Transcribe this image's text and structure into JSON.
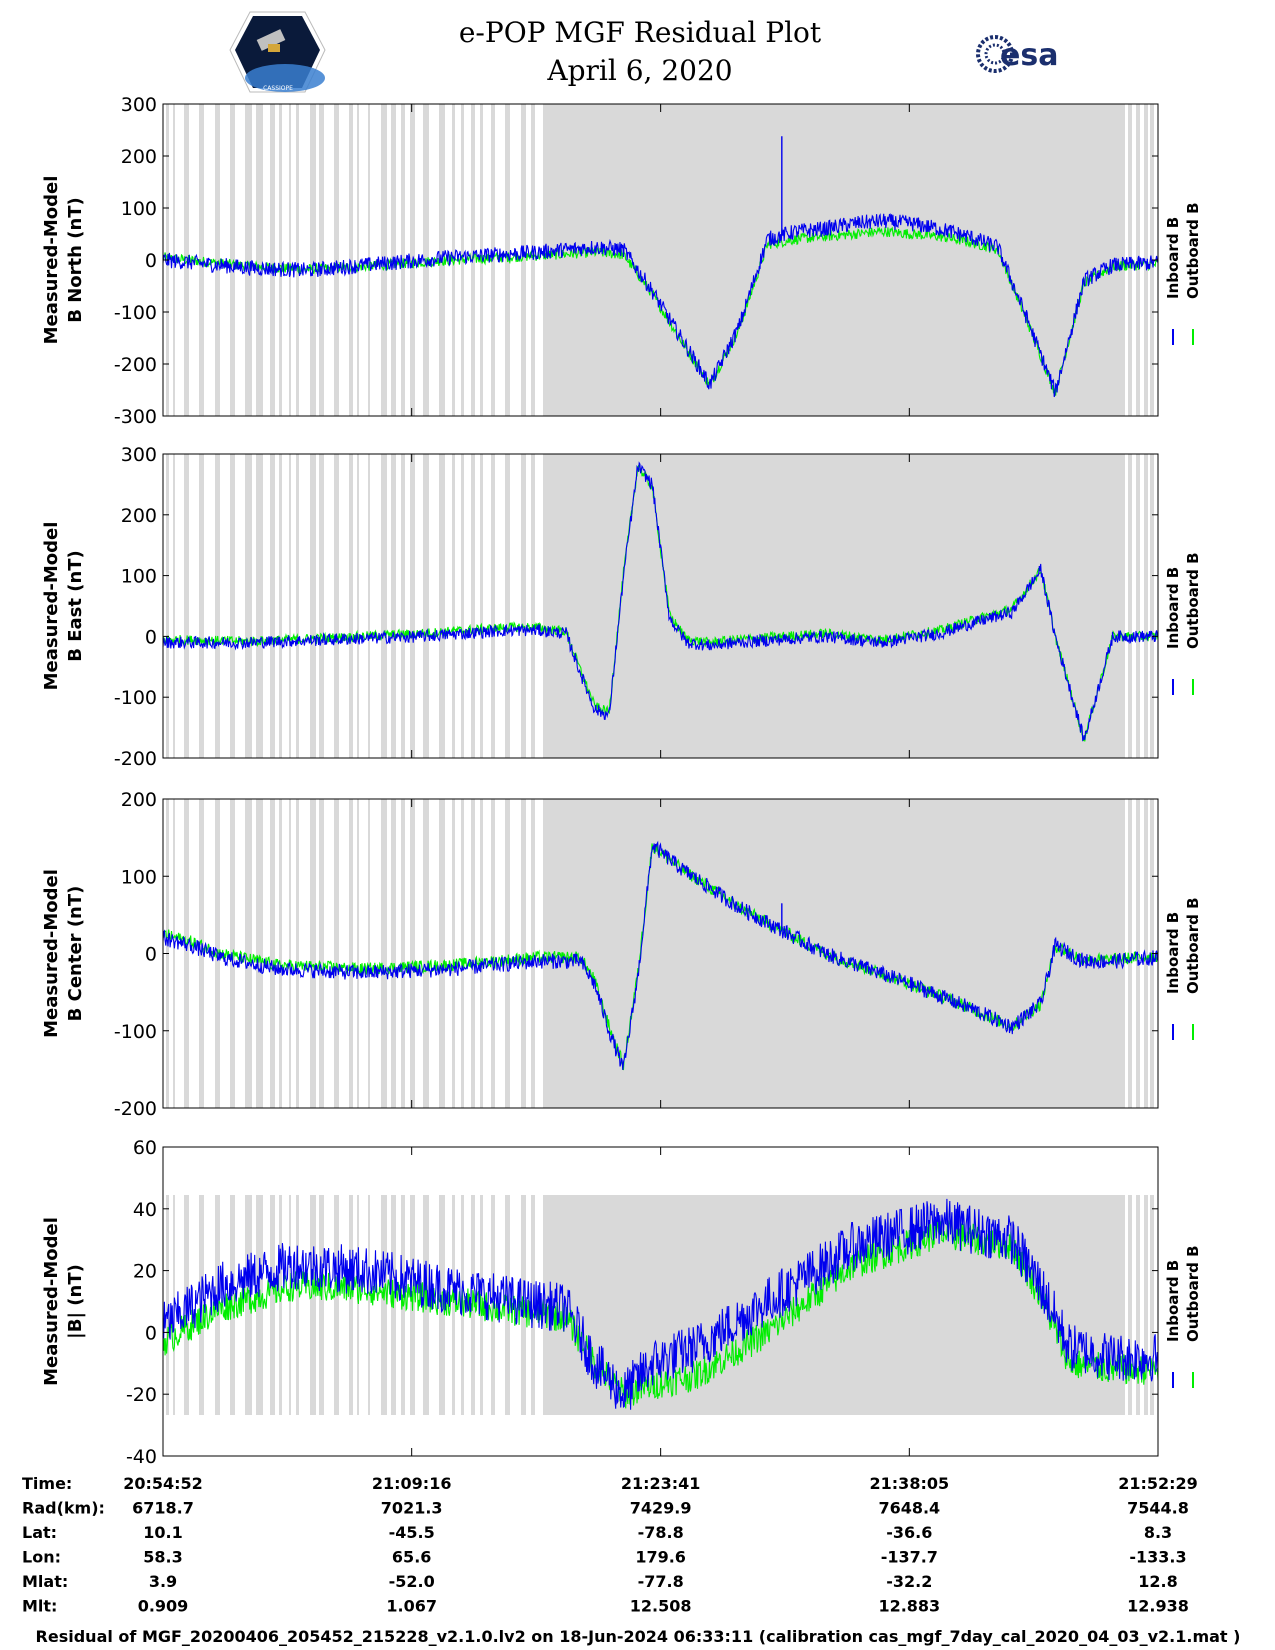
{
  "header": {
    "title_line1": "e-POP MGF Residual Plot",
    "title_line2": "April 6, 2020",
    "logo_left": "CASSIOPE",
    "logo_right": "esa"
  },
  "colors": {
    "inboard": "#0000ee",
    "outboard": "#00ee00",
    "data_gap_shading": "#d9d9d9"
  },
  "chart_data": [
    {
      "type": "line",
      "ylabel_line1": "Measured-Model",
      "ylabel_line2": "B North (nT)",
      "ylim": [
        -300,
        300
      ],
      "yticks": [
        300,
        200,
        100,
        0,
        -100,
        -200,
        -300
      ],
      "x_range_seconds": [
        0,
        3457
      ],
      "series": [
        {
          "name": "Inboard B",
          "x": [
            0,
            300,
            500,
            700,
            1000,
            1300,
            1500,
            1600,
            1700,
            1800,
            1900,
            2000,
            2100,
            2200,
            2300,
            2400,
            2500,
            2600,
            2700,
            2800,
            2900,
            3000,
            3100,
            3200,
            3300,
            3457
          ],
          "y": [
            0,
            -15,
            -20,
            -10,
            5,
            15,
            25,
            20,
            -60,
            -150,
            -240,
            -130,
            40,
            55,
            60,
            70,
            75,
            70,
            60,
            45,
            25,
            -110,
            -255,
            -40,
            -10,
            -5
          ],
          "noise": 15
        },
        {
          "name": "Outboard B",
          "x": [
            0,
            300,
            500,
            700,
            1000,
            1300,
            1500,
            1600,
            1700,
            1800,
            1900,
            2000,
            2100,
            2200,
            2300,
            2400,
            2500,
            2600,
            2700,
            2800,
            2900,
            3000,
            3100,
            3200,
            3300,
            3457
          ],
          "y": [
            5,
            -12,
            -18,
            -12,
            0,
            8,
            15,
            10,
            -65,
            -155,
            -240,
            -135,
            30,
            40,
            45,
            50,
            55,
            50,
            45,
            35,
            20,
            -115,
            -255,
            -45,
            -12,
            -8
          ],
          "noise": 10
        }
      ],
      "spikes": [
        {
          "x": 2150,
          "y": 238
        }
      ]
    },
    {
      "type": "line",
      "ylabel_line1": "Measured-Model",
      "ylabel_line2": "B East (nT)",
      "ylim": [
        -200,
        300
      ],
      "yticks": [
        300,
        200,
        100,
        0,
        -100,
        -200
      ],
      "x_range_seconds": [
        0,
        3457
      ],
      "series": [
        {
          "name": "Inboard B",
          "x": [
            0,
            300,
            600,
            900,
            1200,
            1300,
            1400,
            1450,
            1500,
            1550,
            1600,
            1650,
            1700,
            1760,
            1820,
            1900,
            2000,
            2300,
            2500,
            2700,
            2800,
            2950,
            3050,
            3100,
            3200,
            3300,
            3457
          ],
          "y": [
            -10,
            -10,
            -5,
            0,
            10,
            10,
            5,
            -60,
            -120,
            -130,
            100,
            280,
            250,
            30,
            -10,
            -15,
            -10,
            0,
            -10,
            5,
            20,
            40,
            110,
            0,
            -170,
            0,
            0
          ],
          "noise": 10
        },
        {
          "name": "Outboard B",
          "x": [
            0,
            300,
            600,
            900,
            1200,
            1300,
            1400,
            1450,
            1500,
            1550,
            1600,
            1650,
            1700,
            1760,
            1820,
            1900,
            2000,
            2300,
            2500,
            2700,
            2800,
            2950,
            3050,
            3100,
            3200,
            3300,
            3457
          ],
          "y": [
            -5,
            -8,
            -2,
            5,
            15,
            15,
            8,
            -55,
            -115,
            -125,
            105,
            280,
            245,
            35,
            -5,
            -10,
            -5,
            5,
            -5,
            10,
            25,
            45,
            110,
            0,
            -170,
            0,
            0
          ],
          "noise": 8
        }
      ],
      "spikes": []
    },
    {
      "type": "line",
      "ylabel_line1": "Measured-Model",
      "ylabel_line2": "B Center (nT)",
      "ylim": [
        -200,
        200
      ],
      "yticks": [
        200,
        100,
        0,
        -100,
        -200
      ],
      "x_range_seconds": [
        0,
        3457
      ],
      "series": [
        {
          "name": "Inboard B",
          "x": [
            0,
            100,
            200,
            400,
            700,
            1000,
            1300,
            1450,
            1500,
            1550,
            1600,
            1650,
            1700,
            1800,
            2000,
            2300,
            2600,
            2800,
            2950,
            3050,
            3100,
            3200,
            3300,
            3457
          ],
          "y": [
            20,
            10,
            -5,
            -20,
            -25,
            -20,
            -10,
            -10,
            -40,
            -100,
            -150,
            -30,
            140,
            110,
            60,
            0,
            -40,
            -70,
            -95,
            -65,
            10,
            -10,
            -10,
            -5
          ],
          "noise": 10
        },
        {
          "name": "Outboard B",
          "x": [
            0,
            100,
            200,
            400,
            700,
            1000,
            1300,
            1450,
            1500,
            1550,
            1600,
            1650,
            1700,
            1800,
            2000,
            2300,
            2600,
            2800,
            2950,
            3050,
            3100,
            3200,
            3300,
            3457
          ],
          "y": [
            25,
            15,
            0,
            -15,
            -20,
            -15,
            -5,
            -5,
            -35,
            -95,
            -145,
            -25,
            140,
            110,
            60,
            0,
            -40,
            -70,
            -95,
            -65,
            10,
            -8,
            -8,
            -3
          ],
          "noise": 8
        }
      ],
      "spikes": [
        {
          "x": 2150,
          "y": 65
        }
      ]
    },
    {
      "type": "line",
      "ylabel_line1": "Measured-Model",
      "ylabel_line2": "|B| (nT)",
      "ylim": [
        -40,
        60
      ],
      "yticks": [
        60,
        40,
        20,
        0,
        -20,
        -40
      ],
      "x_range_seconds": [
        0,
        3457
      ],
      "series": [
        {
          "name": "Inboard B",
          "x": [
            0,
            200,
            450,
            700,
            1000,
            1300,
            1400,
            1500,
            1600,
            1700,
            1850,
            2100,
            2400,
            2700,
            2950,
            3050,
            3150,
            3300,
            3457
          ],
          "y": [
            2,
            15,
            22,
            20,
            14,
            9,
            8,
            -10,
            -20,
            -10,
            -5,
            10,
            28,
            36,
            30,
            15,
            -5,
            -8,
            -8
          ],
          "noise": 8
        },
        {
          "name": "Outboard B",
          "x": [
            0,
            200,
            450,
            700,
            1000,
            1300,
            1400,
            1500,
            1600,
            1700,
            1850,
            2100,
            2400,
            2700,
            2950,
            3050,
            3150,
            3300,
            3457
          ],
          "y": [
            -3,
            8,
            15,
            14,
            10,
            6,
            5,
            -10,
            -20,
            -17,
            -14,
            0,
            22,
            32,
            28,
            12,
            -10,
            -12,
            -12
          ],
          "noise": 5
        }
      ],
      "spikes": []
    }
  ],
  "legend": {
    "inboard": "Inboard B",
    "outboard": "Outboard B"
  },
  "x_ticks_seconds": [
    0,
    864,
    1729,
    2593,
    3457
  ],
  "ephemeris": {
    "rows": [
      {
        "label": "Time:",
        "values": [
          "20:54:52",
          "21:09:16",
          "21:23:41",
          "21:38:05",
          "21:52:29"
        ]
      },
      {
        "label": "Rad(km):",
        "values": [
          "6718.7",
          "7021.3",
          "7429.9",
          "7648.4",
          "7544.8"
        ]
      },
      {
        "label": "Lat:",
        "values": [
          "10.1",
          "-45.5",
          "-78.8",
          "-36.6",
          "8.3"
        ]
      },
      {
        "label": "Lon:",
        "values": [
          "58.3",
          "65.6",
          "179.6",
          "-137.7",
          "-133.3"
        ]
      },
      {
        "label": "Mlat:",
        "values": [
          "3.9",
          "-52.0",
          "-77.8",
          "-32.2",
          "12.8"
        ]
      },
      {
        "label": "Mlt:",
        "values": [
          "0.909",
          "1.067",
          "12.508",
          "12.883",
          "12.938"
        ]
      }
    ]
  },
  "footer": "Residual of MGF_20200406_205452_215228_v2.1.0.lv2 on 18-Jun-2024 06:33:11 (calibration cas_mgf_7day_cal_2020_04_03_v2.1.mat )"
}
